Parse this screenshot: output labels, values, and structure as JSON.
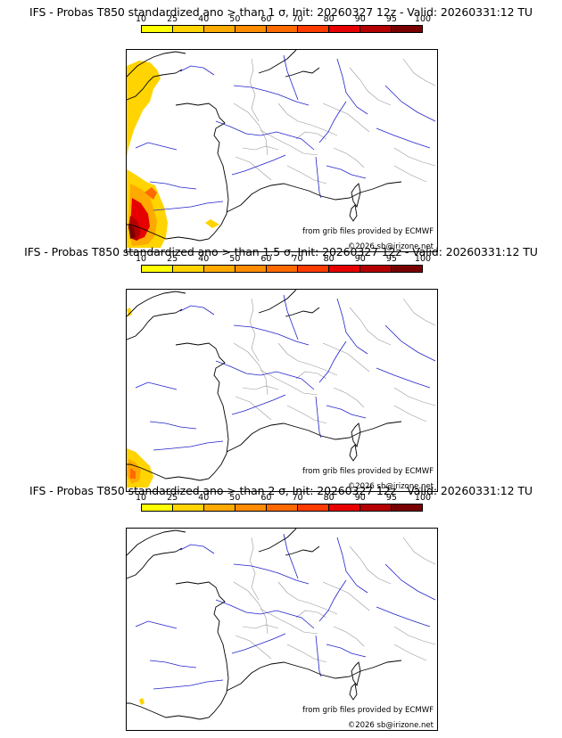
{
  "panels": [
    {
      "title": "IFS - Probas T850  standardized ano > than 1 σ, Init: 20260327 12z - Valid: 20260331:12 TU"
    },
    {
      "title": "IFS - Probas T850  standardized ano > than 1.5 σ, Init: 20260327 12z - Valid: 20260331:12 TU"
    },
    {
      "title": "IFS - Probas T850  standardized ano > than 2 σ, Init: 20260327 12z - Valid: 20260331:12 TU"
    }
  ],
  "colorbar": {
    "ticks": [
      "10",
      "25",
      "40",
      "50",
      "60",
      "70",
      "80",
      "90",
      "95",
      "100"
    ],
    "colors": [
      "#ffff00",
      "#ffd400",
      "#ffaa00",
      "#ff8c00",
      "#ff6a00",
      "#ff3c00",
      "#e60000",
      "#b40000",
      "#780000"
    ]
  },
  "credits": {
    "source": "from grib files provided by ECMWF",
    "copyright": "©2026 sb@irizone.net"
  },
  "map_colors": {
    "coast": "#000000",
    "rivers": "#2222cc",
    "borders": "#999999"
  }
}
